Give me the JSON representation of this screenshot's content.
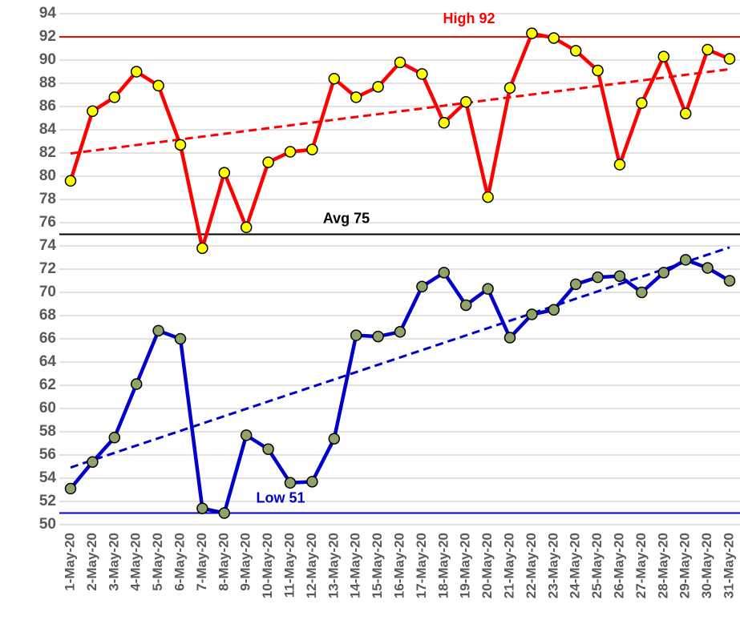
{
  "chart_data": {
    "type": "line",
    "categories": [
      "1-May-20",
      "2-May-20",
      "3-May-20",
      "4-May-20",
      "5-May-20",
      "6-May-20",
      "7-May-20",
      "8-May-20",
      "9-May-20",
      "10-May-20",
      "11-May-20",
      "12-May-20",
      "13-May-20",
      "14-May-20",
      "15-May-20",
      "16-May-20",
      "17-May-20",
      "18-May-20",
      "19-May-20",
      "20-May-20",
      "21-May-20",
      "22-May-20",
      "23-May-20",
      "24-May-20",
      "25-May-20",
      "26-May-20",
      "27-May-20",
      "28-May-20",
      "29-May-20",
      "30-May-20",
      "31-May-20"
    ],
    "series": [
      {
        "color": "#ff0000",
        "marker_color": "#ffff00",
        "trend": true,
        "values": [
          79.6,
          85.6,
          86.8,
          89.0,
          87.8,
          82.7,
          73.8,
          80.3,
          75.6,
          81.2,
          82.1,
          82.3,
          88.4,
          86.8,
          87.7,
          89.8,
          88.8,
          84.6,
          86.4,
          78.2,
          87.6,
          92.3,
          91.9,
          90.8,
          89.1,
          81.0,
          86.3,
          90.3,
          85.4,
          90.9,
          90.1
        ]
      },
      {
        "color": "#0000cc",
        "marker_color": "#8fa36a",
        "trend": true,
        "values": [
          53.1,
          55.4,
          57.5,
          62.1,
          66.7,
          66.0,
          51.4,
          51.0,
          57.7,
          56.5,
          53.6,
          53.7,
          57.4,
          66.3,
          66.2,
          66.6,
          70.5,
          71.7,
          68.9,
          70.3,
          66.1,
          68.1,
          68.5,
          70.7,
          71.3,
          71.4,
          70.0,
          71.7,
          72.8,
          72.1,
          71.0
        ]
      }
    ],
    "reference_lines": [
      {
        "label": "High 92",
        "value": 92,
        "color": "#ff0000"
      },
      {
        "label": "Avg 75",
        "value": 75,
        "color": "#000000"
      },
      {
        "label": "Low 51",
        "value": 51,
        "color": "#0000cc"
      }
    ],
    "ylim": [
      50,
      94
    ],
    "yticks": [
      50,
      52,
      54,
      56,
      58,
      60,
      62,
      64,
      66,
      68,
      70,
      72,
      74,
      76,
      78,
      80,
      82,
      84,
      86,
      88,
      90,
      92,
      94
    ],
    "grid": true
  }
}
